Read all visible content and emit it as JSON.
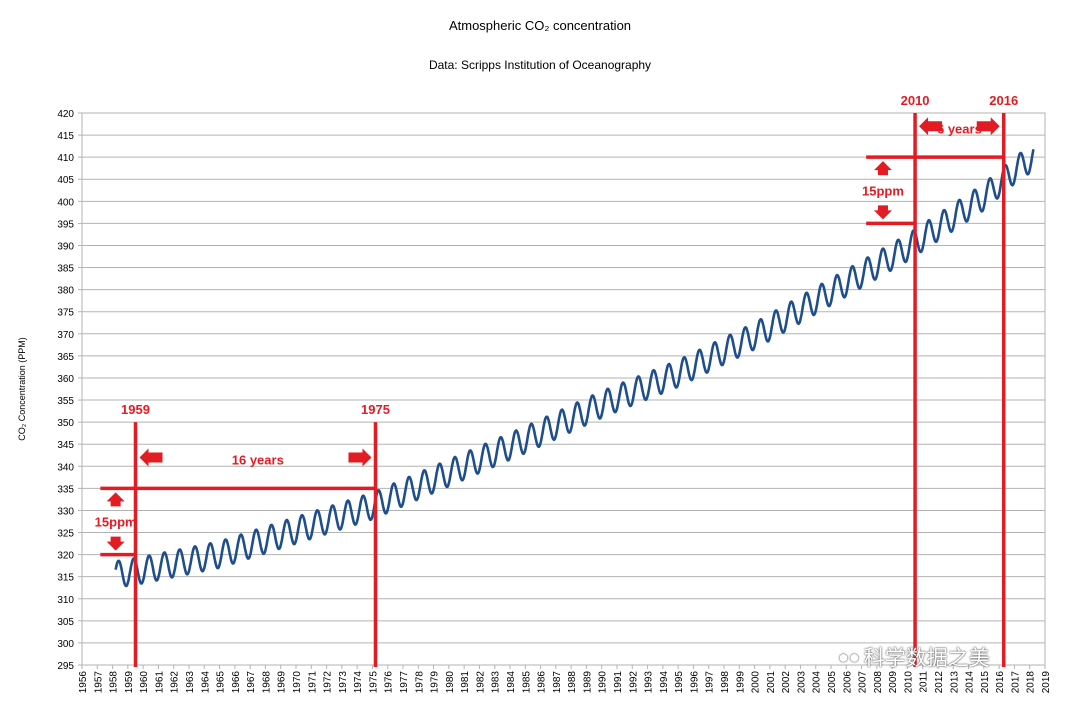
{
  "chart_data": {
    "type": "line",
    "title": "Atmospheric CO₂ concentration",
    "subtitle": "Data: Scripps Institution of Oceanography",
    "ylabel": "CO₂ Concentration (PPM)",
    "xlabel": "",
    "xlim": [
      1956,
      2019
    ],
    "ylim": [
      295,
      420
    ],
    "y_tick_step": 5,
    "x_ticks": [
      "1956",
      "1957",
      "1958",
      "1959",
      "1960",
      "1961",
      "1962",
      "1963",
      "1964",
      "1965",
      "1966",
      "1967",
      "1968",
      "1969",
      "1970",
      "1971",
      "1972",
      "1973",
      "1974",
      "1975",
      "1976",
      "1977",
      "1978",
      "1979",
      "1980",
      "1981",
      "1982",
      "1983",
      "1984",
      "1985",
      "1986",
      "1987",
      "1988",
      "1989",
      "1990",
      "1991",
      "1992",
      "1993",
      "1994",
      "1995",
      "1996",
      "1997",
      "1998",
      "1999",
      "2000",
      "2001",
      "2002",
      "2003",
      "2004",
      "2005",
      "2006",
      "2007",
      "2008",
      "2009",
      "2010",
      "2011",
      "2012",
      "2013",
      "2014",
      "2015",
      "2016",
      "2017",
      "2018",
      "2019"
    ],
    "y_ticks": [
      "295",
      "300",
      "305",
      "310",
      "315",
      "320",
      "325",
      "330",
      "335",
      "340",
      "345",
      "350",
      "355",
      "360",
      "365",
      "370",
      "375",
      "380",
      "385",
      "390",
      "395",
      "400",
      "405",
      "410",
      "415",
      "420"
    ],
    "grid": true,
    "legend": "none",
    "series": [
      {
        "line_color": "#1f4e8c",
        "x_range": [
          1958.2,
          2018.25
        ],
        "seasonal_amplitude_ppm": 3,
        "trend_points": [
          {
            "x": 1958.2,
            "y": 315.5
          },
          {
            "x": 1960,
            "y": 316.5
          },
          {
            "x": 1965,
            "y": 320
          },
          {
            "x": 1970,
            "y": 325.5
          },
          {
            "x": 1975,
            "y": 331
          },
          {
            "x": 1980,
            "y": 338.5
          },
          {
            "x": 1985,
            "y": 346
          },
          {
            "x": 1990,
            "y": 354
          },
          {
            "x": 1995,
            "y": 361
          },
          {
            "x": 2000,
            "y": 369.5
          },
          {
            "x": 2005,
            "y": 379.5
          },
          {
            "x": 2010,
            "y": 389.5
          },
          {
            "x": 2015,
            "y": 401
          },
          {
            "x": 2016,
            "y": 404
          },
          {
            "x": 2017,
            "y": 407
          },
          {
            "x": 2018.25,
            "y": 410
          }
        ]
      }
    ],
    "annotations": {
      "color": "#e31b23",
      "vertical_lines": [
        {
          "x": 1959.5,
          "label": "1959",
          "y_top": 350
        },
        {
          "x": 1975.2,
          "label": "1975",
          "y_top": 350
        },
        {
          "x": 2010.5,
          "label": "2010",
          "y_top": 420
        },
        {
          "x": 2016.3,
          "label": "2016",
          "y_top": 420
        }
      ],
      "horizontal_lines": [
        {
          "y": 335,
          "x_from": 1957.2,
          "x_to": 1975.2
        },
        {
          "y": 320,
          "x_from": 1957.2,
          "x_to": 1959.5
        },
        {
          "y": 410,
          "x_from": 2007.3,
          "x_to": 2016.3
        },
        {
          "y": 395,
          "x_from": 2007.3,
          "x_to": 2010.5
        }
      ],
      "span_labels": [
        {
          "text": "16 years",
          "x": 1967.5,
          "y": 341.5
        },
        {
          "text": "6 years",
          "x": 2013.4,
          "y": 416.5
        },
        {
          "text": "15ppm",
          "x": 1958.2,
          "y": 327.5
        },
        {
          "text": "15ppm",
          "x": 2008.4,
          "y": 402.5
        }
      ]
    }
  },
  "watermark": {
    "text": "科学数据之美",
    "icon": "wechat-icon"
  }
}
